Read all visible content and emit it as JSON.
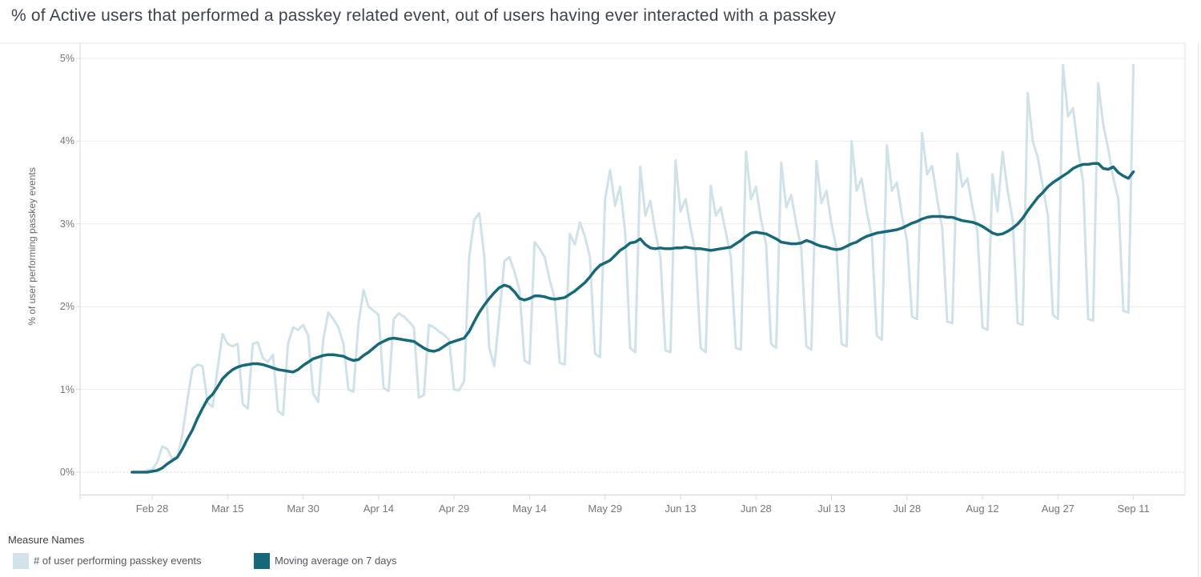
{
  "title": "% of Active users that performed a passkey related event, out of users having ever interacted with a passkey",
  "y_axis": {
    "title": "% of user performing passkey events",
    "tick_labels": [
      "0%",
      "1%",
      "2%",
      "3%",
      "4%",
      "5%"
    ],
    "tick_values": [
      0,
      1,
      2,
      3,
      4,
      5
    ]
  },
  "x_axis": {
    "tick_labels": [
      "Feb 28",
      "Mar 15",
      "Mar 30",
      "Apr 14",
      "Apr 29",
      "May 14",
      "May 29",
      "Jun 13",
      "Jun 28",
      "Jul 13",
      "Jul 28",
      "Aug 12",
      "Aug 27",
      "Sep 11"
    ],
    "tick_day_indices": [
      4,
      19,
      34,
      49,
      64,
      79,
      94,
      109,
      124,
      139,
      154,
      169,
      184,
      199
    ]
  },
  "legend": {
    "title": "Measure Names",
    "items": [
      {
        "label": "# of user performing passkey events",
        "color": "#d2e4ea"
      },
      {
        "label": "Moving average on 7 days",
        "color": "#16697a"
      }
    ]
  },
  "colors": {
    "daily_line": "#cfe2e9",
    "moving_average_line": "#16697a",
    "gridline": "#ebebeb",
    "zero_line": "#c9c9c9",
    "axis_border": "#d8d8d8",
    "tick_text": "#767676",
    "title_text": "#3e444c"
  },
  "chart_data": {
    "type": "line",
    "title": "% of Active users that performed a passkey related event, out of users having ever interacted with a passkey",
    "xlabel": "",
    "ylabel": "% of user performing passkey events",
    "y_unit": "%",
    "ylim": [
      0,
      5
    ],
    "x_cadence": "daily",
    "x_start_label": "Feb 24",
    "x_end_label": "Sep 11",
    "x_tick_labels": [
      "Feb 28",
      "Mar 15",
      "Mar 30",
      "Apr 14",
      "Apr 29",
      "May 14",
      "May 29",
      "Jun 13",
      "Jun 28",
      "Jul 13",
      "Jul 28",
      "Aug 12",
      "Aug 27",
      "Sep 11"
    ],
    "x_tick_day_indices": [
      4,
      19,
      34,
      49,
      64,
      79,
      94,
      109,
      124,
      139,
      154,
      169,
      184,
      199
    ],
    "grid": "horizontal-only",
    "legend_position": "bottom-left",
    "series": [
      {
        "name": "# of user performing passkey events",
        "color": "#cfe2e9",
        "width": 3,
        "values": [
          0.0,
          0.0,
          0.0,
          0.02,
          0.03,
          0.12,
          0.31,
          0.28,
          0.16,
          0.18,
          0.45,
          0.87,
          1.25,
          1.3,
          1.28,
          0.84,
          0.79,
          1.25,
          1.67,
          1.55,
          1.52,
          1.55,
          0.82,
          0.77,
          1.55,
          1.57,
          1.38,
          1.33,
          1.42,
          0.74,
          0.69,
          1.55,
          1.75,
          1.72,
          1.78,
          1.65,
          0.95,
          0.85,
          1.6,
          1.93,
          1.85,
          1.75,
          1.55,
          1.0,
          0.97,
          1.8,
          2.2,
          2.0,
          1.95,
          1.9,
          1.02,
          0.98,
          1.85,
          1.92,
          1.88,
          1.82,
          1.75,
          0.9,
          0.93,
          1.78,
          1.75,
          1.7,
          1.66,
          1.6,
          1.0,
          0.99,
          1.1,
          2.6,
          3.05,
          3.13,
          2.6,
          1.5,
          1.28,
          1.9,
          2.55,
          2.6,
          2.42,
          2.2,
          1.35,
          1.31,
          2.78,
          2.7,
          2.6,
          2.32,
          2.1,
          1.32,
          1.3,
          2.88,
          2.75,
          3.02,
          2.85,
          2.6,
          1.43,
          1.39,
          3.3,
          3.65,
          3.22,
          3.45,
          2.9,
          1.5,
          1.45,
          3.69,
          3.1,
          3.28,
          2.9,
          2.6,
          1.47,
          1.45,
          3.77,
          3.15,
          3.3,
          2.95,
          2.65,
          1.5,
          1.45,
          3.46,
          3.1,
          3.2,
          2.9,
          2.6,
          1.5,
          1.48,
          3.87,
          3.3,
          3.45,
          3.05,
          2.75,
          1.55,
          1.5,
          3.74,
          3.2,
          3.35,
          3.0,
          2.7,
          1.52,
          1.48,
          3.76,
          3.25,
          3.4,
          3.0,
          2.7,
          1.55,
          1.52,
          4.0,
          3.4,
          3.55,
          3.15,
          2.85,
          1.65,
          1.6,
          3.95,
          3.4,
          3.5,
          3.1,
          2.8,
          1.88,
          1.85,
          4.1,
          3.6,
          3.7,
          3.3,
          2.95,
          1.82,
          1.8,
          3.85,
          3.45,
          3.55,
          3.2,
          2.9,
          1.75,
          1.72,
          3.6,
          3.15,
          3.87,
          3.4,
          3.05,
          1.8,
          1.78,
          4.58,
          4.0,
          3.8,
          3.45,
          3.1,
          1.9,
          1.85,
          4.92,
          4.3,
          4.4,
          3.9,
          3.5,
          1.85,
          1.83,
          4.7,
          4.2,
          3.9,
          3.55,
          3.3,
          1.95,
          1.93,
          4.92
        ]
      },
      {
        "name": "Moving average on 7 days",
        "color": "#16697a",
        "width": 3.5,
        "values": [
          0.0,
          0.0,
          0.0,
          0.0,
          0.01,
          0.02,
          0.05,
          0.1,
          0.14,
          0.18,
          0.28,
          0.4,
          0.51,
          0.65,
          0.77,
          0.88,
          0.94,
          1.03,
          1.13,
          1.19,
          1.24,
          1.27,
          1.29,
          1.3,
          1.31,
          1.31,
          1.3,
          1.28,
          1.26,
          1.24,
          1.23,
          1.22,
          1.21,
          1.24,
          1.29,
          1.33,
          1.37,
          1.39,
          1.41,
          1.42,
          1.42,
          1.41,
          1.4,
          1.37,
          1.35,
          1.36,
          1.41,
          1.45,
          1.5,
          1.55,
          1.58,
          1.61,
          1.62,
          1.61,
          1.6,
          1.59,
          1.58,
          1.54,
          1.5,
          1.47,
          1.46,
          1.48,
          1.52,
          1.56,
          1.58,
          1.6,
          1.62,
          1.7,
          1.82,
          1.93,
          2.02,
          2.1,
          2.17,
          2.23,
          2.26,
          2.24,
          2.18,
          2.1,
          2.08,
          2.1,
          2.13,
          2.13,
          2.12,
          2.1,
          2.09,
          2.1,
          2.11,
          2.15,
          2.19,
          2.24,
          2.29,
          2.36,
          2.44,
          2.5,
          2.53,
          2.56,
          2.62,
          2.68,
          2.72,
          2.77,
          2.78,
          2.82,
          2.75,
          2.71,
          2.7,
          2.71,
          2.7,
          2.7,
          2.71,
          2.71,
          2.72,
          2.71,
          2.7,
          2.7,
          2.69,
          2.68,
          2.69,
          2.7,
          2.71,
          2.72,
          2.76,
          2.8,
          2.85,
          2.89,
          2.9,
          2.89,
          2.88,
          2.85,
          2.82,
          2.78,
          2.77,
          2.76,
          2.76,
          2.77,
          2.8,
          2.78,
          2.75,
          2.73,
          2.72,
          2.7,
          2.69,
          2.7,
          2.73,
          2.76,
          2.78,
          2.82,
          2.85,
          2.87,
          2.89,
          2.9,
          2.91,
          2.92,
          2.93,
          2.95,
          2.98,
          3.01,
          3.03,
          3.06,
          3.08,
          3.09,
          3.09,
          3.09,
          3.08,
          3.08,
          3.06,
          3.04,
          3.03,
          3.02,
          3.0,
          2.97,
          2.93,
          2.89,
          2.87,
          2.88,
          2.91,
          2.95,
          3.0,
          3.07,
          3.16,
          3.24,
          3.32,
          3.38,
          3.45,
          3.5,
          3.54,
          3.58,
          3.62,
          3.67,
          3.7,
          3.72,
          3.72,
          3.73,
          3.73,
          3.67,
          3.66,
          3.69,
          3.62,
          3.58,
          3.55,
          3.63
        ]
      }
    ]
  }
}
